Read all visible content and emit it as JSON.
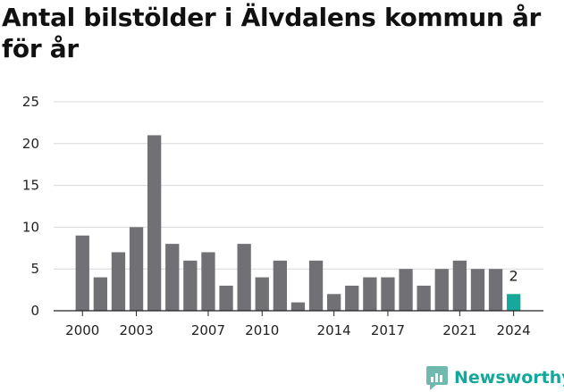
{
  "title": "Antal bilstölder i Älvdalens kommun år för år",
  "brand": {
    "name": "Newsworthy",
    "icon": "newsworthy-logo-icon",
    "color": "#14a89a"
  },
  "colors": {
    "bar": "#717075",
    "highlight": "#16a89b",
    "grid": "#d8d8d8",
    "axis": "#222222"
  },
  "chart_data": {
    "type": "bar",
    "title": "Antal bilstölder i Älvdalens kommun år för år",
    "xlabel": "",
    "ylabel": "",
    "categories": [
      "2000",
      "2001",
      "2002",
      "2003",
      "2004",
      "2005",
      "2006",
      "2007",
      "2008",
      "2009",
      "2010",
      "2011",
      "2012",
      "2013",
      "2014",
      "2015",
      "2016",
      "2017",
      "2018",
      "2019",
      "2020",
      "2021",
      "2022",
      "2023",
      "2024"
    ],
    "values": [
      9,
      4,
      7,
      10,
      21,
      8,
      6,
      7,
      3,
      8,
      4,
      6,
      1,
      6,
      2,
      3,
      4,
      4,
      5,
      3,
      5,
      6,
      5,
      5,
      2
    ],
    "highlight_index": 24,
    "data_labels": [
      {
        "category": "2024",
        "text": "2"
      }
    ],
    "x_tick_labels": [
      "2000",
      "2003",
      "2007",
      "2010",
      "2014",
      "2017",
      "2021",
      "2024"
    ],
    "y_ticks": [
      "0",
      "5",
      "10",
      "15",
      "20",
      "25"
    ],
    "ylim": [
      0,
      25
    ],
    "grid": "horizontal",
    "legend": "none"
  }
}
